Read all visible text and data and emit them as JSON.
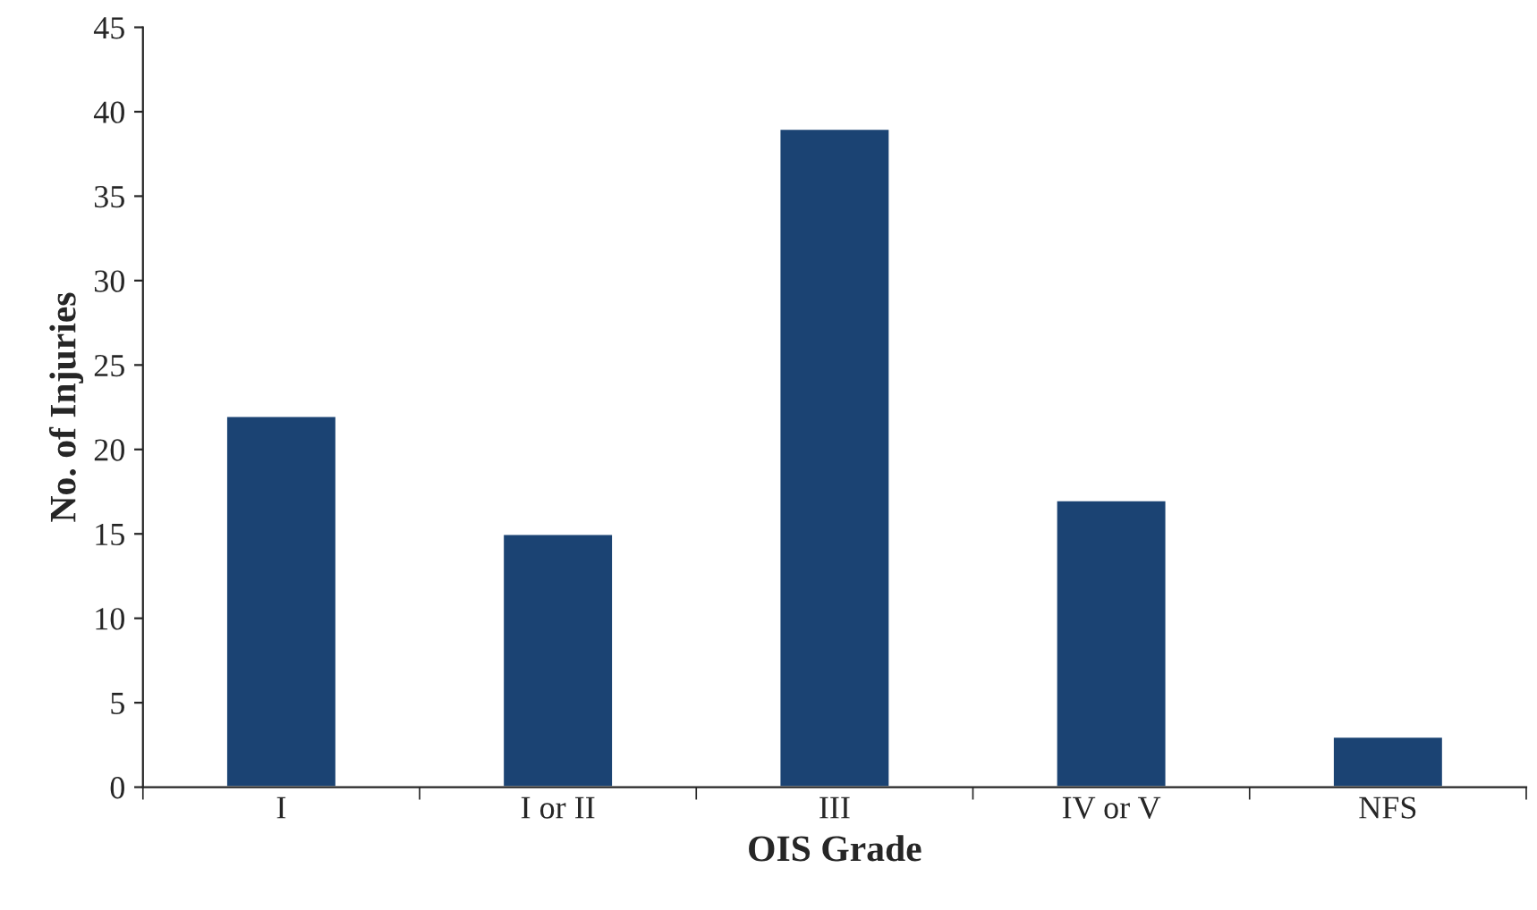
{
  "chart_data": {
    "type": "bar",
    "xlabel": "OIS Grade",
    "ylabel": "No. of Injuries",
    "categories": [
      "I",
      "I or II",
      "III",
      "IV or V",
      "NFS"
    ],
    "values": [
      22,
      15,
      39,
      17,
      3
    ],
    "color": "#1b4373",
    "ylim": [
      0,
      45
    ],
    "yticks": [
      0,
      5,
      10,
      15,
      20,
      25,
      30,
      35,
      40,
      45
    ],
    "grid": false
  }
}
